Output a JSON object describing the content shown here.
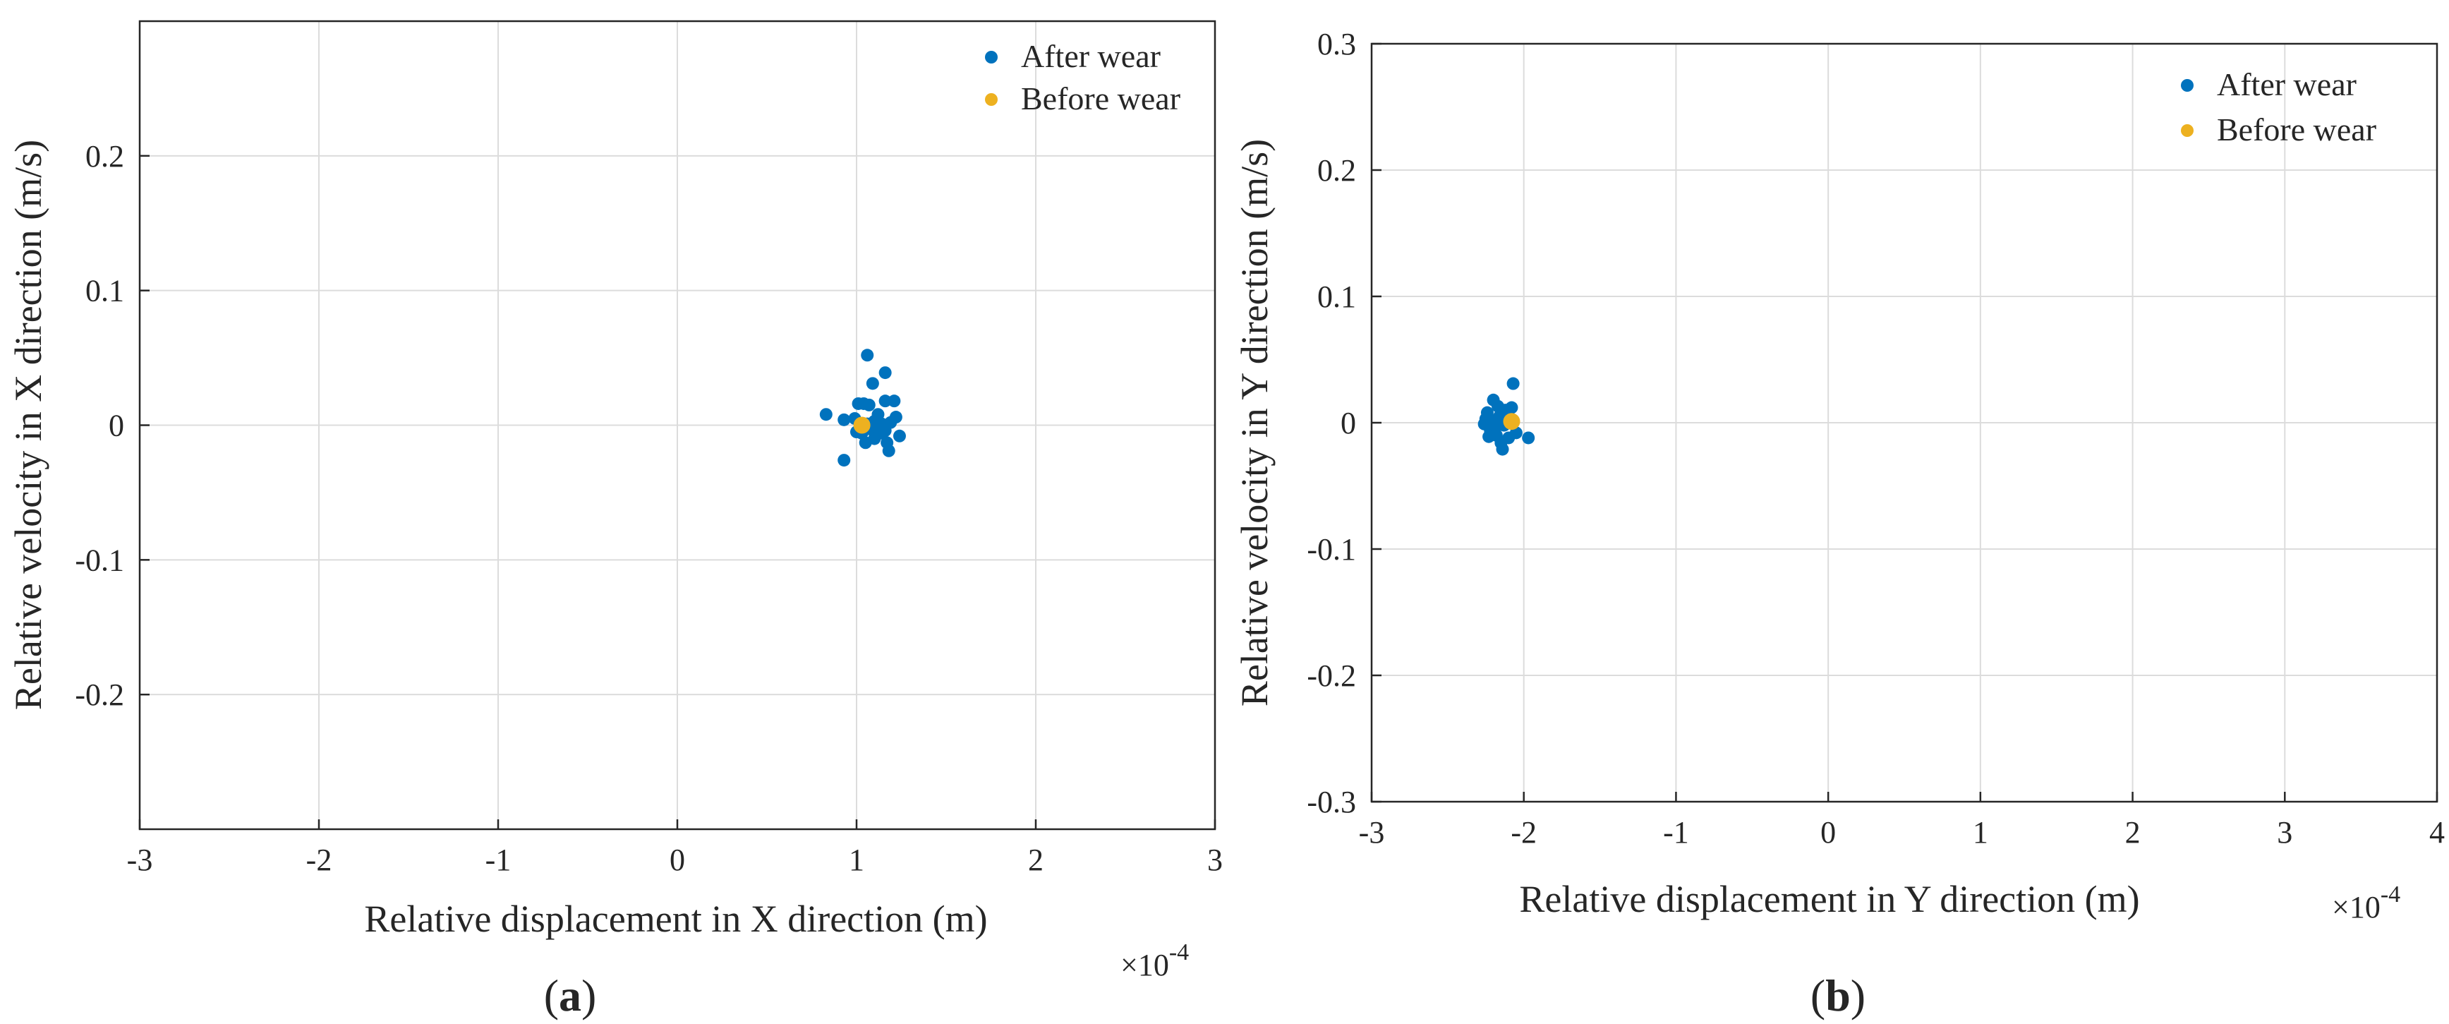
{
  "figure": {
    "panels": [
      {
        "label_open": "(",
        "label_letter": "a",
        "label_close": ")"
      },
      {
        "label_open": "(",
        "label_letter": "b",
        "label_close": ")"
      }
    ]
  },
  "chart_data": [
    {
      "type": "scatter",
      "xlabel": "Relative displacement in X direction (m)",
      "ylabel": "Relative velocity in X direction (m/s)",
      "x_exponent_label": "×10",
      "x_exponent_power": "-4",
      "x_scale_factor": 0.0001,
      "xlim": [
        -3,
        3
      ],
      "ylim": [
        -0.3,
        0.3
      ],
      "xticks": [
        -3,
        -2,
        -1,
        0,
        1,
        2,
        3
      ],
      "xtick_labels": [
        "-3",
        "-2",
        "-1",
        "0",
        "1",
        "2",
        "3"
      ],
      "yticks": [
        -0.2,
        -0.1,
        0,
        0.1,
        0.2
      ],
      "ytick_labels": [
        "-0.2",
        "-0.1",
        "0",
        "0.1",
        "0.2"
      ],
      "grid": true,
      "legend_position": "top-right",
      "series": [
        {
          "name": "After wear",
          "color": "#0072BD",
          "points": [
            [
              1.06,
              0.052
            ],
            [
              1.16,
              0.039
            ],
            [
              1.09,
              0.031
            ],
            [
              0.83,
              0.008
            ],
            [
              0.93,
              0.004
            ],
            [
              1.01,
              0.016
            ],
            [
              1.04,
              0.016
            ],
            [
              1.07,
              0.015
            ],
            [
              1.16,
              0.018
            ],
            [
              1.21,
              0.018
            ],
            [
              1.22,
              0.006
            ],
            [
              1.24,
              -0.008
            ],
            [
              1.12,
              0.008
            ],
            [
              1.1,
              0.003
            ],
            [
              1.08,
              -0.003
            ],
            [
              1.13,
              -0.006
            ],
            [
              1.16,
              -0.004
            ],
            [
              1.03,
              -0.006
            ],
            [
              1.05,
              -0.013
            ],
            [
              1.0,
              -0.005
            ],
            [
              1.17,
              -0.013
            ],
            [
              1.18,
              -0.019
            ],
            [
              0.93,
              -0.026
            ],
            [
              0.99,
              0.005
            ],
            [
              1.1,
              -0.01
            ],
            [
              1.14,
              0.001
            ],
            [
              1.19,
              0.002
            ],
            [
              1.06,
              0.001
            ]
          ]
        },
        {
          "name": "Before wear",
          "color": "#EDB120",
          "points": [
            [
              1.03,
              0.0
            ]
          ]
        }
      ]
    },
    {
      "type": "scatter",
      "xlabel": "Relative displacement in Y direction (m)",
      "ylabel": "Relative velocity in Y direction (m/s)",
      "x_exponent_label": "×10",
      "x_exponent_power": "-4",
      "x_scale_factor": 0.0001,
      "xlim": [
        -3,
        4
      ],
      "ylim": [
        -0.3,
        0.3
      ],
      "xticks": [
        -3,
        -2,
        -1,
        0,
        1,
        2,
        3,
        4
      ],
      "xtick_labels": [
        "-3",
        "-2",
        "-1",
        "0",
        "1",
        "2",
        "3",
        "4"
      ],
      "yticks": [
        -0.3,
        -0.2,
        -0.1,
        0,
        0.1,
        0.2,
        0.3
      ],
      "ytick_labels": [
        "-0.3",
        "-0.2",
        "-0.1",
        "0",
        "0.1",
        "0.2",
        "0.3"
      ],
      "grid": true,
      "legend_position": "top-right",
      "series": [
        {
          "name": "After wear",
          "color": "#0072BD",
          "points": [
            [
              -2.07,
              0.031
            ],
            [
              -2.2,
              0.018
            ],
            [
              -2.17,
              0.013
            ],
            [
              -2.24,
              0.008
            ],
            [
              -2.12,
              0.01
            ],
            [
              -2.08,
              0.012
            ],
            [
              -2.25,
              0.003
            ],
            [
              -2.21,
              0.002
            ],
            [
              -2.16,
              0.005
            ],
            [
              -2.13,
              -0.002
            ],
            [
              -2.26,
              -0.001
            ],
            [
              -2.22,
              -0.006
            ],
            [
              -2.18,
              -0.01
            ],
            [
              -2.1,
              -0.012
            ],
            [
              -2.05,
              -0.008
            ],
            [
              -1.97,
              -0.012
            ],
            [
              -2.15,
              -0.016
            ],
            [
              -2.14,
              -0.021
            ],
            [
              -2.19,
              -0.004
            ],
            [
              -2.11,
              0.004
            ],
            [
              -2.23,
              -0.011
            ],
            [
              -2.09,
              0.001
            ]
          ]
        },
        {
          "name": "Before wear",
          "color": "#EDB120",
          "points": [
            [
              -2.08,
              0.001
            ]
          ]
        }
      ]
    }
  ]
}
